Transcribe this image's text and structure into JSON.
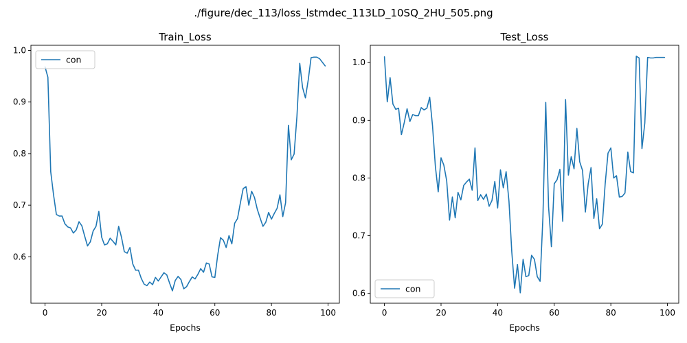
{
  "figure": {
    "suptitle": "./figure/dec_113/loss_lstmdec_113LD_10SQ_2HU_505.png"
  },
  "colors": {
    "series": "#1f77b4",
    "axis": "#000000",
    "legend_border": "#cccccc"
  },
  "chart_data": [
    {
      "type": "line",
      "title": "Train_Loss",
      "xlabel": "Epochs",
      "ylabel": "",
      "xlim": [
        -5,
        104
      ],
      "ylim": [
        0.51,
        1.01
      ],
      "xticks": [
        0,
        20,
        40,
        60,
        80,
        100
      ],
      "yticks": [
        0.6,
        0.7,
        0.8,
        0.9,
        1.0
      ],
      "ytick_labels": [
        "0.6",
        "0.7",
        "0.8",
        "0.9",
        "1.0"
      ],
      "legend": {
        "placement": "upper-left",
        "entries": [
          "con"
        ]
      },
      "grid": false,
      "series": [
        {
          "name": "con",
          "values": [
            0.968,
            0.948,
            0.765,
            0.72,
            0.682,
            0.679,
            0.679,
            0.664,
            0.658,
            0.656,
            0.646,
            0.652,
            0.668,
            0.66,
            0.64,
            0.621,
            0.629,
            0.65,
            0.659,
            0.688,
            0.638,
            0.623,
            0.625,
            0.636,
            0.63,
            0.623,
            0.659,
            0.638,
            0.61,
            0.607,
            0.618,
            0.586,
            0.574,
            0.574,
            0.558,
            0.547,
            0.544,
            0.551,
            0.546,
            0.56,
            0.553,
            0.561,
            0.569,
            0.565,
            0.549,
            0.534,
            0.554,
            0.562,
            0.556,
            0.538,
            0.542,
            0.552,
            0.561,
            0.557,
            0.566,
            0.577,
            0.57,
            0.588,
            0.586,
            0.561,
            0.56,
            0.603,
            0.637,
            0.632,
            0.618,
            0.641,
            0.625,
            0.665,
            0.674,
            0.704,
            0.732,
            0.736,
            0.7,
            0.727,
            0.715,
            0.692,
            0.675,
            0.659,
            0.667,
            0.686,
            0.673,
            0.684,
            0.694,
            0.72,
            0.678,
            0.705,
            0.855,
            0.788,
            0.799,
            0.872,
            0.975,
            0.928,
            0.908,
            0.943,
            0.986,
            0.987,
            0.987,
            0.984,
            0.977,
            0.97
          ]
        }
      ]
    },
    {
      "type": "line",
      "title": "Test_Loss",
      "xlabel": "Epochs",
      "ylabel": "",
      "xlim": [
        -5,
        104
      ],
      "ylim": [
        0.583,
        1.03
      ],
      "xticks": [
        0,
        20,
        40,
        60,
        80,
        100
      ],
      "yticks": [
        0.6,
        0.7,
        0.8,
        0.9,
        1.0
      ],
      "ytick_labels": [
        "0.6",
        "0.7",
        "0.8",
        "0.9",
        "1.0"
      ],
      "legend": {
        "placement": "lower-left",
        "entries": [
          "con"
        ]
      },
      "grid": false,
      "series": [
        {
          "name": "con",
          "values": [
            1.01,
            0.932,
            0.974,
            0.928,
            0.919,
            0.921,
            0.875,
            0.896,
            0.92,
            0.898,
            0.91,
            0.908,
            0.908,
            0.922,
            0.918,
            0.921,
            0.94,
            0.89,
            0.82,
            0.776,
            0.835,
            0.822,
            0.795,
            0.727,
            0.767,
            0.731,
            0.775,
            0.762,
            0.787,
            0.793,
            0.798,
            0.779,
            0.852,
            0.761,
            0.771,
            0.763,
            0.772,
            0.751,
            0.761,
            0.794,
            0.748,
            0.814,
            0.783,
            0.811,
            0.76,
            0.672,
            0.609,
            0.65,
            0.601,
            0.659,
            0.629,
            0.631,
            0.666,
            0.659,
            0.629,
            0.621,
            0.732,
            0.931,
            0.75,
            0.681,
            0.79,
            0.797,
            0.815,
            0.725,
            0.936,
            0.805,
            0.837,
            0.816,
            0.886,
            0.828,
            0.813,
            0.741,
            0.79,
            0.818,
            0.73,
            0.764,
            0.712,
            0.72,
            0.79,
            0.843,
            0.852,
            0.8,
            0.804,
            0.767,
            0.768,
            0.774,
            0.845,
            0.811,
            0.809,
            1.011,
            1.008,
            0.851,
            0.895,
            1.009,
            1.008,
            1.008,
            1.009,
            1.009,
            1.009,
            1.009
          ]
        }
      ]
    }
  ]
}
